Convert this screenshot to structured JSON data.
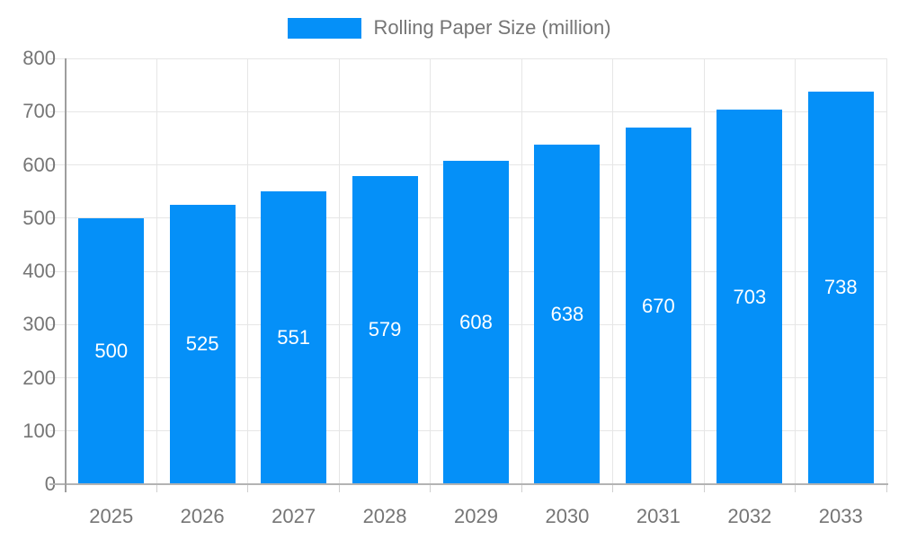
{
  "legend": {
    "label": "Rolling Paper Size (million)"
  },
  "chart_data": {
    "type": "bar",
    "title": "Rolling Paper Size (million)",
    "series_name": "Rolling Paper Size (million)",
    "categories": [
      "2025",
      "2026",
      "2027",
      "2028",
      "2029",
      "2030",
      "2031",
      "2032",
      "2033"
    ],
    "values": [
      500,
      525,
      551,
      579,
      608,
      638,
      670,
      703,
      738
    ],
    "xlabel": "",
    "ylabel": "",
    "ylim": [
      0,
      800
    ],
    "yticks": [
      0,
      100,
      200,
      300,
      400,
      500,
      600,
      700,
      800
    ],
    "grid": true,
    "legend_position": "top",
    "value_labels": "inside-center"
  },
  "style": {
    "bar_color": "#0590F8",
    "value_label_color": "#FFFFFF",
    "axis_text_color": "#757575",
    "grid_color": "#E6E6E6",
    "axis_line_color": "#9E9E9E",
    "baseline_color": "#B3B3B3",
    "tick_color": "#CFCFCF",
    "background": "#FFFFFF"
  }
}
